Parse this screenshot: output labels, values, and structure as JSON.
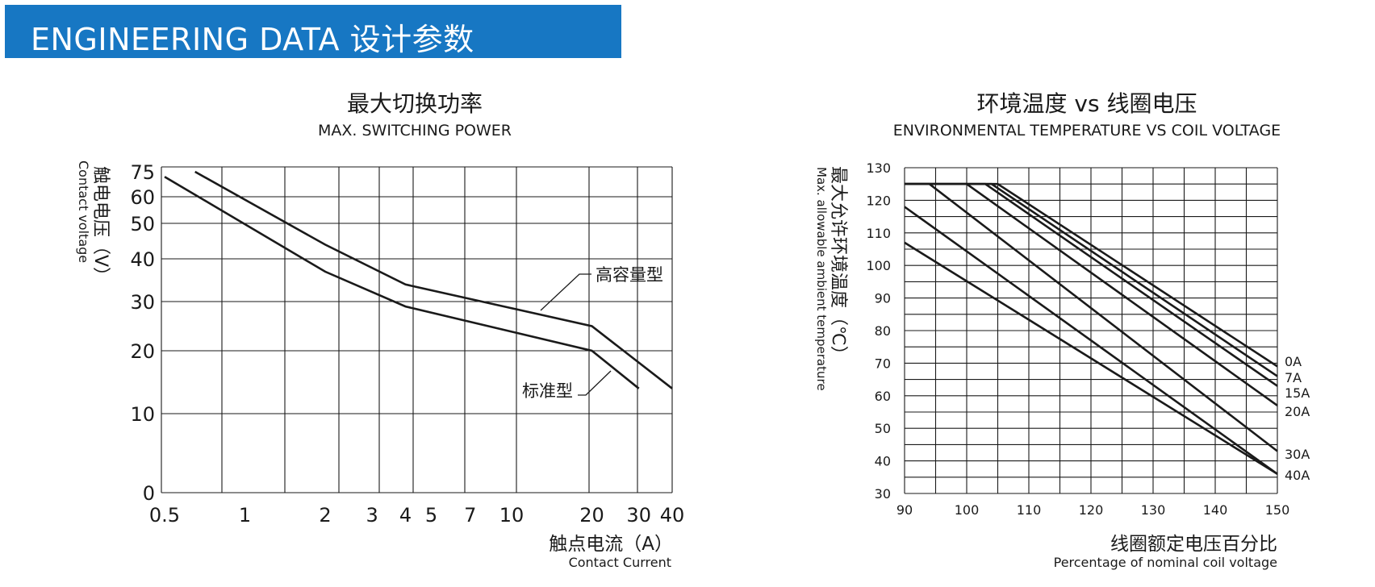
{
  "banner": {
    "title": "ENGINEERING DATA 设计参数",
    "color": "#1777c3"
  },
  "chart_data": [
    {
      "type": "line",
      "title": "最大切换功率",
      "subtitle": "MAX. SWITCHING POWER",
      "xlabel": "触点电流（A）",
      "xlabel_en": "Contact Current",
      "ylabel": "触电电压（V）",
      "ylabel_en": "Contact voltage",
      "x_scale": "log",
      "y_scale": "nonlinear",
      "x_ticks": [
        0.5,
        1,
        2,
        3,
        4,
        5,
        7,
        10,
        20,
        30,
        40
      ],
      "y_ticks": [
        0,
        10,
        20,
        30,
        40,
        50,
        60,
        75
      ],
      "grid": true,
      "series": [
        {
          "name": "高容量型",
          "x": [
            0.65,
            2,
            4,
            20,
            40
          ],
          "y": [
            75,
            44,
            34,
            25,
            14
          ]
        },
        {
          "name": "标准型",
          "x": [
            0.5,
            2,
            4,
            20,
            30
          ],
          "y": [
            72,
            37,
            29,
            20,
            14
          ]
        }
      ]
    },
    {
      "type": "line",
      "title": "环境温度 vs 线圈电压",
      "subtitle": "ENVIRONMENTAL TEMPERATURE VS COIL VOLTAGE",
      "xlabel": "线圈额定电压百分比",
      "xlabel_en": "Percentage of nominal coil voltage",
      "ylabel": "最大允许环境温度（℃）",
      "ylabel_en": "Max. allowable ambient temperature",
      "xlim": [
        90,
        150
      ],
      "ylim": [
        30,
        130
      ],
      "x_ticks": [
        90,
        100,
        110,
        120,
        130,
        140,
        150
      ],
      "y_ticks": [
        30,
        40,
        50,
        60,
        70,
        80,
        90,
        100,
        110,
        120,
        130
      ],
      "grid": true,
      "series": [
        {
          "name": "0A",
          "x": [
            90,
            105,
            150
          ],
          "y": [
            125,
            125,
            69
          ]
        },
        {
          "name": "7A",
          "x": [
            90,
            104,
            150
          ],
          "y": [
            125,
            125,
            66
          ]
        },
        {
          "name": "15A",
          "x": [
            90,
            103,
            150
          ],
          "y": [
            125,
            125,
            63
          ]
        },
        {
          "name": "20A",
          "x": [
            90,
            100,
            150
          ],
          "y": [
            125,
            125,
            57
          ]
        },
        {
          "name": "30A",
          "x": [
            90,
            94,
            150
          ],
          "y": [
            125,
            125,
            43
          ]
        },
        {
          "name": "40A",
          "x": [
            90,
            150
          ],
          "y": [
            118,
            36
          ]
        },
        {
          "name": "",
          "x": [
            90,
            150
          ],
          "y": [
            107,
            36
          ]
        }
      ]
    }
  ]
}
